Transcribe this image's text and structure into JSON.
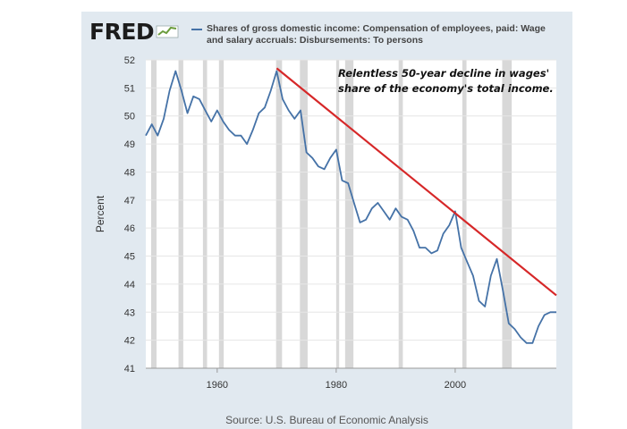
{
  "logo": {
    "text": "FRED"
  },
  "legend": {
    "text": "Shares of gross domestic income: Compensation of employees, paid: Wage and salary accruals: Disbursements: To persons",
    "color": "#4572a7"
  },
  "annotation": {
    "line1": "Relentless 50-year decline in wages'",
    "line2": "share of the economy's total income."
  },
  "source": "Source: U.S. Bureau of Economic Analysis",
  "chart_data": {
    "type": "line",
    "title": "",
    "xlabel": "",
    "ylabel": "Percent",
    "xlim": [
      1948,
      2017
    ],
    "ylim": [
      41,
      52
    ],
    "yticks": [
      41,
      42,
      43,
      44,
      45,
      46,
      47,
      48,
      49,
      50,
      51,
      52
    ],
    "xticks": [
      1960,
      1980,
      2000
    ],
    "grid": true,
    "line_color": "#4572a7",
    "trend_color": "#d62728",
    "recession_color": "#d8d8d8",
    "series": [
      {
        "x": [
          1948,
          1949,
          1950,
          1951,
          1952,
          1953,
          1954,
          1955,
          1956,
          1957,
          1958,
          1959,
          1960,
          1961,
          1962,
          1963,
          1964,
          1965,
          1966,
          1967,
          1968,
          1969,
          1970,
          1971,
          1972,
          1973,
          1974,
          1975,
          1976,
          1977,
          1978,
          1979,
          1980,
          1981,
          1982,
          1983,
          1984,
          1985,
          1986,
          1987,
          1988,
          1989,
          1990,
          1991,
          1992,
          1993,
          1994,
          1995,
          1996,
          1997,
          1998,
          1999,
          2000,
          2001,
          2002,
          2003,
          2004,
          2005,
          2006,
          2007,
          2008,
          2009,
          2010,
          2011,
          2012,
          2013,
          2014,
          2015,
          2016,
          2017
        ],
        "values": [
          49.3,
          49.7,
          49.3,
          49.9,
          50.9,
          51.6,
          50.9,
          50.1,
          50.7,
          50.6,
          50.2,
          49.8,
          50.2,
          49.8,
          49.5,
          49.3,
          49.3,
          49.0,
          49.5,
          50.1,
          50.3,
          50.9,
          51.6,
          50.6,
          50.2,
          49.9,
          50.2,
          48.7,
          48.5,
          48.2,
          48.1,
          48.5,
          48.8,
          47.7,
          47.6,
          46.9,
          46.2,
          46.3,
          46.7,
          46.9,
          46.6,
          46.3,
          46.7,
          46.4,
          46.3,
          45.9,
          45.3,
          45.3,
          45.1,
          45.2,
          45.8,
          46.1,
          46.6,
          45.3,
          44.8,
          44.3,
          43.4,
          43.2,
          44.3,
          44.9,
          43.8,
          42.6,
          42.4,
          42.1,
          41.9,
          41.9,
          42.5,
          42.9,
          43.0,
          43.0
        ]
      }
    ],
    "recessions": [
      [
        1948.9,
        1949.8
      ],
      [
        1953.5,
        1954.3
      ],
      [
        1957.6,
        1958.3
      ],
      [
        1960.3,
        1961.1
      ],
      [
        1969.9,
        1970.9
      ],
      [
        1973.9,
        1975.2
      ],
      [
        1980.0,
        1980.5
      ],
      [
        1981.5,
        1982.9
      ],
      [
        1990.5,
        1991.2
      ],
      [
        2001.2,
        2001.9
      ],
      [
        2007.9,
        2009.5
      ]
    ],
    "trend_line": {
      "x": [
        1970,
        2017
      ],
      "y": [
        51.7,
        43.6
      ]
    }
  }
}
